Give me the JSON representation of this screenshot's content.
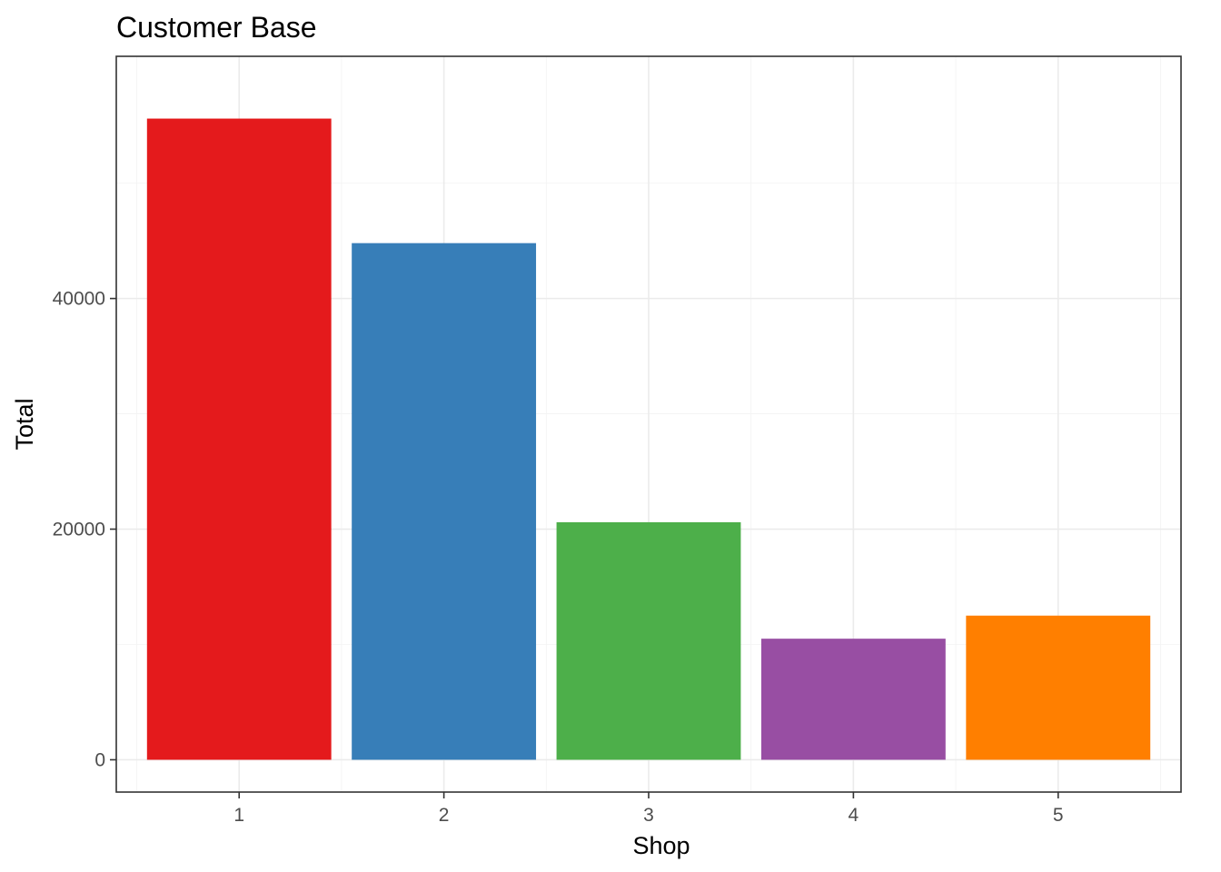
{
  "chart_data": {
    "type": "bar",
    "title": "Customer Base",
    "xlabel": "Shop",
    "ylabel": "Total",
    "categories": [
      "1",
      "2",
      "3",
      "4",
      "5"
    ],
    "values": [
      55600,
      44800,
      20600,
      10500,
      12500
    ],
    "colors": [
      "#E41A1C",
      "#377EB8",
      "#4DAF4A",
      "#984EA3",
      "#FF7F00"
    ],
    "yticks": [
      0,
      20000,
      40000
    ],
    "ytick_labels": [
      "0",
      "20000",
      "40000"
    ],
    "ylim": [
      -2800,
      61000
    ],
    "grid": true,
    "legend": "none"
  }
}
